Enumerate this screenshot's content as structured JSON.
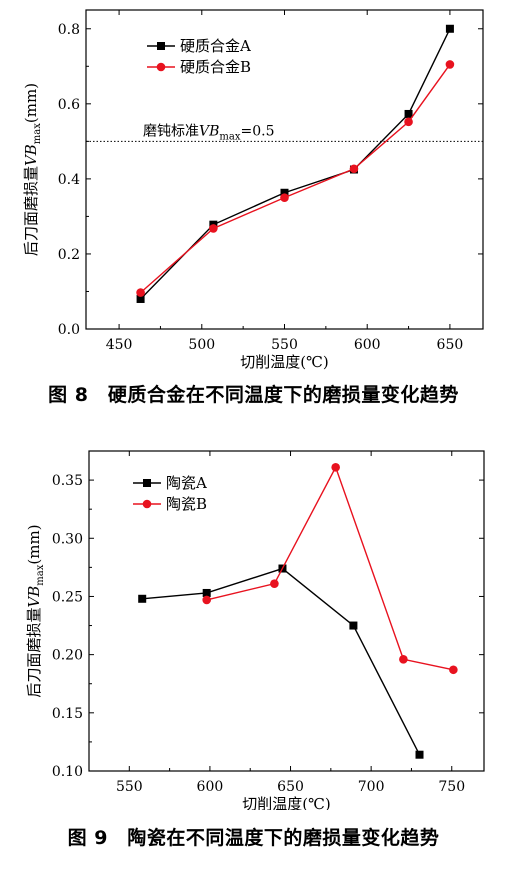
{
  "figures": [
    {
      "caption": "图 8　硬质合金在不同温度下的磨损量变化趋势"
    },
    {
      "caption": "图 9　陶瓷在不同温度下的磨损量变化趋势"
    }
  ],
  "chart_data": [
    {
      "type": "line",
      "title": "",
      "xlabel": "切削温度(℃)",
      "ylabel_parts": {
        "prefix": "后刀面磨损量",
        "var": "VB",
        "sub": "max",
        "suffix": "(mm)"
      },
      "xlim": [
        430,
        670
      ],
      "ylim": [
        0,
        0.85
      ],
      "xticks": [
        "450",
        "500",
        "550",
        "600",
        "650"
      ],
      "xtick_values": [
        450,
        500,
        550,
        600,
        650
      ],
      "yticks": [
        "0.0",
        "0.2",
        "0.4",
        "0.6",
        "0.8"
      ],
      "ytick_values": [
        0.0,
        0.2,
        0.4,
        0.6,
        0.8
      ],
      "legend_position": "top-left",
      "series": [
        {
          "name": "硬质合金A",
          "color": "#000000",
          "marker": "square",
          "x": [
            463,
            507,
            550,
            592,
            625,
            650
          ],
          "y": [
            0.08,
            0.278,
            0.363,
            0.425,
            0.573,
            0.8
          ]
        },
        {
          "name": "硬质合金B",
          "color": "#e8121f",
          "marker": "circle",
          "x": [
            463,
            507,
            550,
            592,
            625,
            650
          ],
          "y": [
            0.097,
            0.268,
            0.35,
            0.427,
            0.552,
            0.705
          ]
        }
      ],
      "reference_line": {
        "y": 0.5,
        "label_prefix": "磨钝标准",
        "label_var": "VB",
        "label_sub": "max",
        "label_suffix": "=0.5"
      }
    },
    {
      "type": "line",
      "title": "",
      "xlabel": "切削温度(℃)",
      "ylabel_parts": {
        "prefix": "后刀面磨损量",
        "var": "VB",
        "sub": "max",
        "suffix": "(mm)"
      },
      "xlim": [
        525,
        770
      ],
      "ylim": [
        0.1,
        0.375
      ],
      "xticks": [
        "550",
        "600",
        "650",
        "700",
        "750"
      ],
      "xtick_values": [
        550,
        600,
        650,
        700,
        750
      ],
      "yticks": [
        "0.10",
        "0.15",
        "0.20",
        "0.25",
        "0.30",
        "0.35"
      ],
      "ytick_values": [
        0.1,
        0.15,
        0.2,
        0.25,
        0.3,
        0.35
      ],
      "legend_position": "top-left",
      "series": [
        {
          "name": "陶瓷A",
          "color": "#000000",
          "marker": "square",
          "x": [
            558,
            598,
            645,
            689,
            730
          ],
          "y": [
            0.248,
            0.253,
            0.274,
            0.225,
            0.114
          ]
        },
        {
          "name": "陶瓷B",
          "color": "#e8121f",
          "marker": "circle",
          "x": [
            598,
            640,
            678,
            720,
            751
          ],
          "y": [
            0.247,
            0.261,
            0.361,
            0.196,
            0.187
          ]
        }
      ]
    }
  ]
}
